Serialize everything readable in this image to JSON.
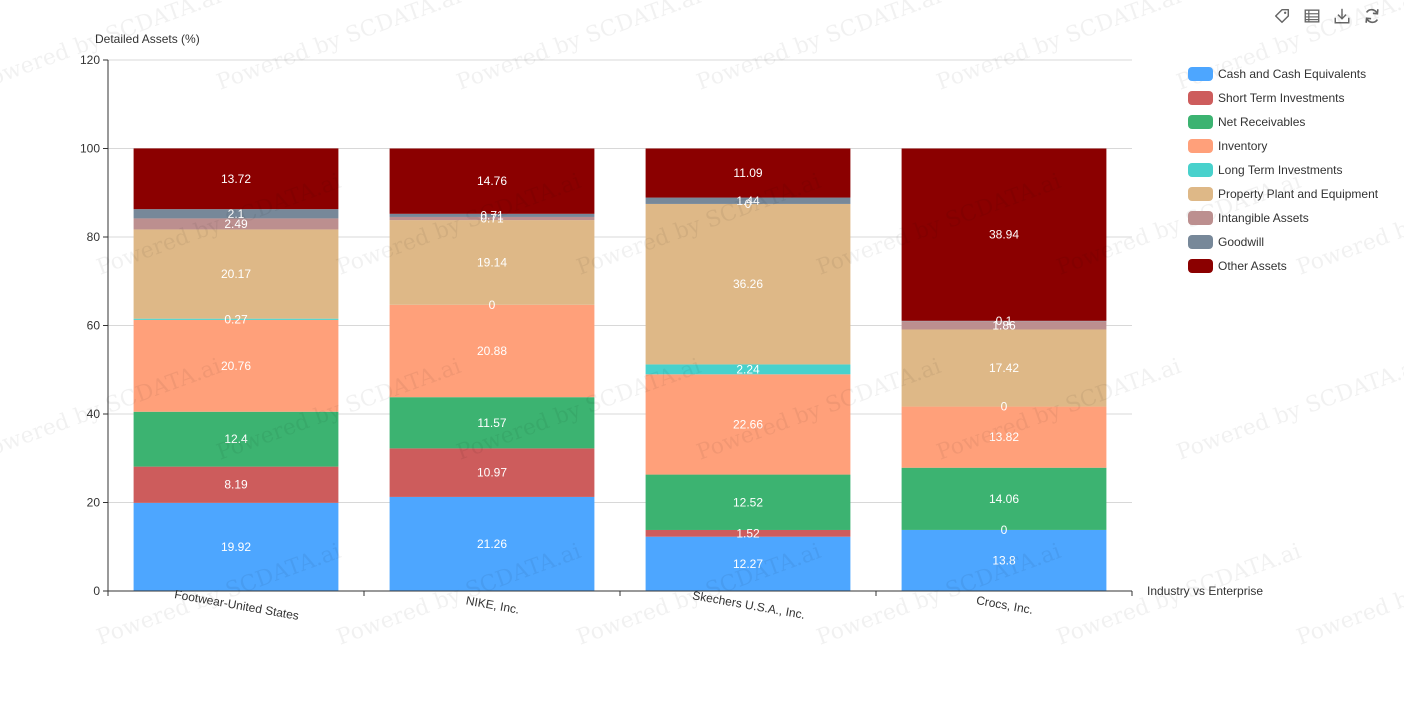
{
  "toolbox": {
    "icons": [
      "tag-icon",
      "data-view-icon",
      "download-icon",
      "refresh-icon"
    ]
  },
  "watermark": {
    "text": "Powered by SCDATA.ai"
  },
  "chart_data": {
    "type": "bar",
    "stacked": true,
    "title": "",
    "ylabel": "Detailed Assets (%)",
    "xlabel": "Industry vs Enterprise",
    "ylim": [
      0,
      120
    ],
    "yticks": [
      0,
      20,
      40,
      60,
      80,
      100,
      120
    ],
    "grid": true,
    "legend_position": "right",
    "categories": [
      "Footwear-United States",
      "NIKE, Inc.",
      "Skechers U.S.A., Inc.",
      "Crocs, Inc."
    ],
    "series": [
      {
        "name": "Cash and Cash Equivalents",
        "color": "#4da6ff",
        "values": [
          19.92,
          21.26,
          12.27,
          13.8
        ]
      },
      {
        "name": "Short Term Investments",
        "color": "#cd5c5c",
        "values": [
          8.19,
          10.97,
          1.52,
          0
        ]
      },
      {
        "name": "Net Receivables",
        "color": "#3cb371",
        "values": [
          12.4,
          11.57,
          12.52,
          14.06
        ]
      },
      {
        "name": "Inventory",
        "color": "#ffa07a",
        "values": [
          20.76,
          20.88,
          22.66,
          13.82
        ]
      },
      {
        "name": "Long Term Investments",
        "color": "#48d1cc",
        "values": [
          0.27,
          0,
          2.24,
          0
        ]
      },
      {
        "name": "Property Plant and Equipment",
        "color": "#deb887",
        "values": [
          20.17,
          19.14,
          36.26,
          17.42
        ]
      },
      {
        "name": "Intangible Assets",
        "color": "#bc8f8f",
        "values": [
          2.49,
          0.71,
          0,
          1.86
        ]
      },
      {
        "name": "Goodwill",
        "color": "#778899",
        "values": [
          2.1,
          0.71,
          1.44,
          0.1
        ]
      },
      {
        "name": "Other Assets",
        "color": "#8b0000",
        "values": [
          13.72,
          14.76,
          11.09,
          38.94
        ]
      }
    ]
  }
}
